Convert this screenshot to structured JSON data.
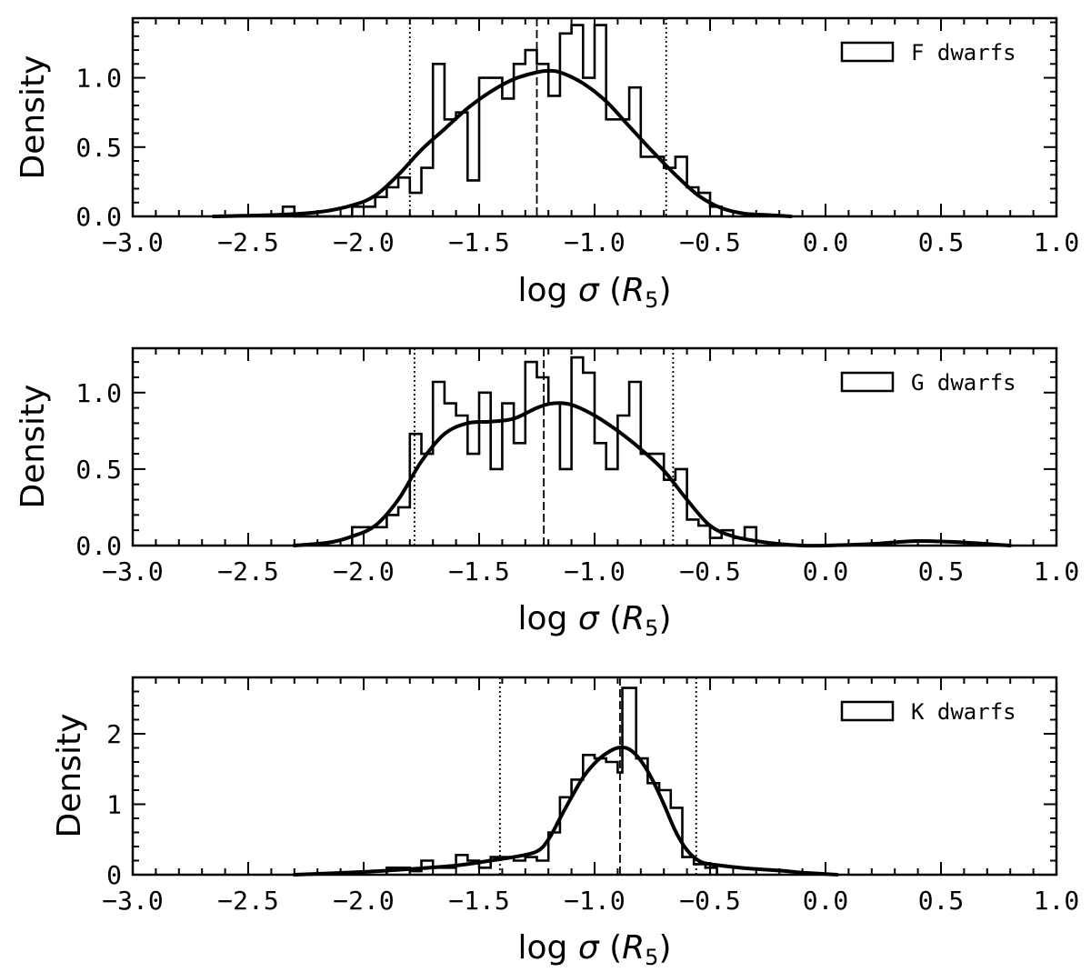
{
  "chart_data": [
    {
      "type": "histogram",
      "panel": "F",
      "legend": "F dwarfs",
      "legend_position": "top-right",
      "xlabel": "log σ (R5)",
      "ylabel": "Density",
      "xlim": [
        -3.0,
        1.0
      ],
      "ylim": [
        0,
        1.43
      ],
      "yticks": [
        0.0,
        0.5,
        1.0
      ],
      "ytick_labels": [
        "0.0",
        "0.5",
        "1.0"
      ],
      "bin_width": 0.05,
      "bins": [
        {
          "x0": -2.35,
          "y": 0.07
        },
        {
          "x0": -2.3,
          "y": 0.0
        },
        {
          "x0": -2.25,
          "y": 0.0
        },
        {
          "x0": -2.2,
          "y": 0.0
        },
        {
          "x0": -2.15,
          "y": 0.0
        },
        {
          "x0": -2.1,
          "y": 0.0
        },
        {
          "x0": -2.05,
          "y": 0.07
        },
        {
          "x0": -2.0,
          "y": 0.07
        },
        {
          "x0": -1.95,
          "y": 0.14
        },
        {
          "x0": -1.9,
          "y": 0.21
        },
        {
          "x0": -1.85,
          "y": 0.28
        },
        {
          "x0": -1.8,
          "y": 0.17
        },
        {
          "x0": -1.75,
          "y": 0.35
        },
        {
          "x0": -1.7,
          "y": 1.1
        },
        {
          "x0": -1.65,
          "y": 0.7
        },
        {
          "x0": -1.6,
          "y": 0.75
        },
        {
          "x0": -1.55,
          "y": 0.26
        },
        {
          "x0": -1.5,
          "y": 1.0
        },
        {
          "x0": -1.45,
          "y": 1.0
        },
        {
          "x0": -1.4,
          "y": 0.85
        },
        {
          "x0": -1.35,
          "y": 1.1
        },
        {
          "x0": -1.3,
          "y": 1.2
        },
        {
          "x0": -1.25,
          "y": 1.1
        },
        {
          "x0": -1.2,
          "y": 0.87
        },
        {
          "x0": -1.15,
          "y": 1.32
        },
        {
          "x0": -1.1,
          "y": 1.38
        },
        {
          "x0": -1.05,
          "y": 1.0
        },
        {
          "x0": -1.0,
          "y": 1.38
        },
        {
          "x0": -0.95,
          "y": 0.7
        },
        {
          "x0": -0.9,
          "y": 0.7
        },
        {
          "x0": -0.85,
          "y": 0.93
        },
        {
          "x0": -0.8,
          "y": 0.43
        },
        {
          "x0": -0.75,
          "y": 0.43
        },
        {
          "x0": -0.7,
          "y": 0.35
        },
        {
          "x0": -0.65,
          "y": 0.43
        },
        {
          "x0": -0.6,
          "y": 0.21
        },
        {
          "x0": -0.55,
          "y": 0.17
        },
        {
          "x0": -0.5,
          "y": 0.07
        }
      ],
      "kde": {
        "x": [
          -2.65,
          -2.4,
          -2.2,
          -2.05,
          -1.95,
          -1.85,
          -1.75,
          -1.65,
          -1.55,
          -1.45,
          -1.35,
          -1.25,
          -1.2,
          -1.15,
          -1.05,
          -0.95,
          -0.85,
          -0.75,
          -0.65,
          -0.55,
          -0.45,
          -0.35,
          -0.25,
          -0.15
        ],
        "y": [
          0.0,
          0.01,
          0.03,
          0.08,
          0.15,
          0.3,
          0.48,
          0.63,
          0.78,
          0.9,
          0.99,
          1.04,
          1.05,
          1.04,
          0.96,
          0.83,
          0.65,
          0.47,
          0.3,
          0.15,
          0.06,
          0.02,
          0.01,
          0.0
        ]
      },
      "median": -1.25,
      "percentile_lines": [
        -1.8,
        -0.69
      ]
    },
    {
      "type": "histogram",
      "panel": "G",
      "legend": "G dwarfs",
      "legend_position": "top-right",
      "xlabel": "log σ (R5)",
      "ylabel": "Density",
      "xlim": [
        -3.0,
        1.0
      ],
      "ylim": [
        0,
        1.29
      ],
      "yticks": [
        0.0,
        0.5,
        1.0
      ],
      "ytick_labels": [
        "0.0",
        "0.5",
        "1.0"
      ],
      "bin_width": 0.05,
      "bins": [
        {
          "x0": -2.05,
          "y": 0.12
        },
        {
          "x0": -2.0,
          "y": 0.12
        },
        {
          "x0": -1.95,
          "y": 0.12
        },
        {
          "x0": -1.9,
          "y": 0.2
        },
        {
          "x0": -1.85,
          "y": 0.25
        },
        {
          "x0": -1.8,
          "y": 0.73
        },
        {
          "x0": -1.75,
          "y": 0.6
        },
        {
          "x0": -1.7,
          "y": 1.07
        },
        {
          "x0": -1.65,
          "y": 0.93
        },
        {
          "x0": -1.6,
          "y": 0.85
        },
        {
          "x0": -1.55,
          "y": 0.6
        },
        {
          "x0": -1.5,
          "y": 1.0
        },
        {
          "x0": -1.45,
          "y": 0.5
        },
        {
          "x0": -1.4,
          "y": 0.93
        },
        {
          "x0": -1.35,
          "y": 0.67
        },
        {
          "x0": -1.3,
          "y": 1.2
        },
        {
          "x0": -1.25,
          "y": 1.1
        },
        {
          "x0": -1.2,
          "y": 0.93
        },
        {
          "x0": -1.15,
          "y": 0.5
        },
        {
          "x0": -1.1,
          "y": 1.23
        },
        {
          "x0": -1.05,
          "y": 1.13
        },
        {
          "x0": -1.0,
          "y": 0.67
        },
        {
          "x0": -0.95,
          "y": 0.5
        },
        {
          "x0": -0.9,
          "y": 0.85
        },
        {
          "x0": -0.85,
          "y": 1.07
        },
        {
          "x0": -0.8,
          "y": 0.6
        },
        {
          "x0": -0.75,
          "y": 0.6
        },
        {
          "x0": -0.7,
          "y": 0.43
        },
        {
          "x0": -0.65,
          "y": 0.5
        },
        {
          "x0": -0.6,
          "y": 0.17
        },
        {
          "x0": -0.55,
          "y": 0.13
        },
        {
          "x0": -0.5,
          "y": 0.05
        },
        {
          "x0": -0.45,
          "y": 0.1
        },
        {
          "x0": -0.4,
          "y": 0.05
        },
        {
          "x0": -0.35,
          "y": 0.12
        }
      ],
      "kde": {
        "x": [
          -2.3,
          -2.15,
          -2.05,
          -1.95,
          -1.85,
          -1.75,
          -1.65,
          -1.55,
          -1.45,
          -1.35,
          -1.25,
          -1.18,
          -1.1,
          -1.0,
          -0.9,
          -0.8,
          -0.7,
          -0.6,
          -0.5,
          -0.4,
          -0.3,
          -0.2,
          -0.1,
          0.0,
          0.2,
          0.4,
          0.6,
          0.8
        ],
        "y": [
          0.0,
          0.02,
          0.06,
          0.13,
          0.3,
          0.55,
          0.73,
          0.8,
          0.81,
          0.83,
          0.9,
          0.93,
          0.92,
          0.85,
          0.75,
          0.63,
          0.49,
          0.3,
          0.13,
          0.06,
          0.03,
          0.01,
          0.0,
          0.0,
          0.01,
          0.03,
          0.02,
          0.0
        ]
      },
      "median": -1.22,
      "percentile_lines": [
        -1.78,
        -0.66
      ]
    },
    {
      "type": "histogram",
      "panel": "K",
      "legend": "K dwarfs",
      "legend_position": "top-right",
      "xlabel": "log σ (R5)",
      "ylabel": "Density",
      "xlim": [
        -3.0,
        1.0
      ],
      "ylim": [
        0,
        2.8
      ],
      "yticks": [
        0,
        1,
        2
      ],
      "ytick_labels": [
        "0",
        "1",
        "2"
      ],
      "bin_width": 0.05,
      "bins": [
        {
          "x0": -1.9,
          "y": 0.1
        },
        {
          "x0": -1.85,
          "y": 0.1
        },
        {
          "x0": -1.8,
          "y": 0.05
        },
        {
          "x0": -1.75,
          "y": 0.2
        },
        {
          "x0": -1.7,
          "y": 0.1
        },
        {
          "x0": -1.65,
          "y": 0.1
        },
        {
          "x0": -1.6,
          "y": 0.28
        },
        {
          "x0": -1.55,
          "y": 0.2
        },
        {
          "x0": -1.5,
          "y": 0.1
        },
        {
          "x0": -1.45,
          "y": 0.25
        },
        {
          "x0": -1.4,
          "y": 0.25
        },
        {
          "x0": -1.35,
          "y": 0.2
        },
        {
          "x0": -1.3,
          "y": 0.25
        },
        {
          "x0": -1.25,
          "y": 0.2
        },
        {
          "x0": -1.2,
          "y": 0.6
        },
        {
          "x0": -1.15,
          "y": 1.1
        },
        {
          "x0": -1.1,
          "y": 1.35
        },
        {
          "x0": -1.05,
          "y": 1.7
        },
        {
          "x0": -1.0,
          "y": 1.65
        },
        {
          "x0": -0.95,
          "y": 1.6
        },
        {
          "x0": -0.9,
          "y": 1.45
        },
        {
          "x0": -0.88,
          "y": 2.65
        },
        {
          "x0": -0.82,
          "y": 1.65
        },
        {
          "x0": -0.77,
          "y": 1.3
        },
        {
          "x0": -0.72,
          "y": 1.2
        },
        {
          "x0": -0.67,
          "y": 0.95
        },
        {
          "x0": -0.62,
          "y": 0.25
        },
        {
          "x0": -0.57,
          "y": 0.15
        },
        {
          "x0": -0.52,
          "y": 0.1
        }
      ],
      "kde": {
        "x": [
          -2.3,
          -2.0,
          -1.8,
          -1.6,
          -1.45,
          -1.35,
          -1.25,
          -1.2,
          -1.15,
          -1.1,
          -1.05,
          -1.0,
          -0.95,
          -0.9,
          -0.85,
          -0.8,
          -0.75,
          -0.7,
          -0.65,
          -0.6,
          -0.55,
          -0.5,
          -0.4,
          -0.3,
          -0.2,
          -0.1,
          0.0,
          0.05
        ],
        "y": [
          0.0,
          0.04,
          0.08,
          0.13,
          0.2,
          0.25,
          0.33,
          0.5,
          0.8,
          1.1,
          1.38,
          1.58,
          1.72,
          1.8,
          1.78,
          1.62,
          1.35,
          1.0,
          0.62,
          0.35,
          0.2,
          0.15,
          0.11,
          0.08,
          0.06,
          0.03,
          0.01,
          0.0
        ]
      },
      "median": -0.89,
      "percentile_lines": [
        -1.41,
        -0.56
      ]
    }
  ]
}
